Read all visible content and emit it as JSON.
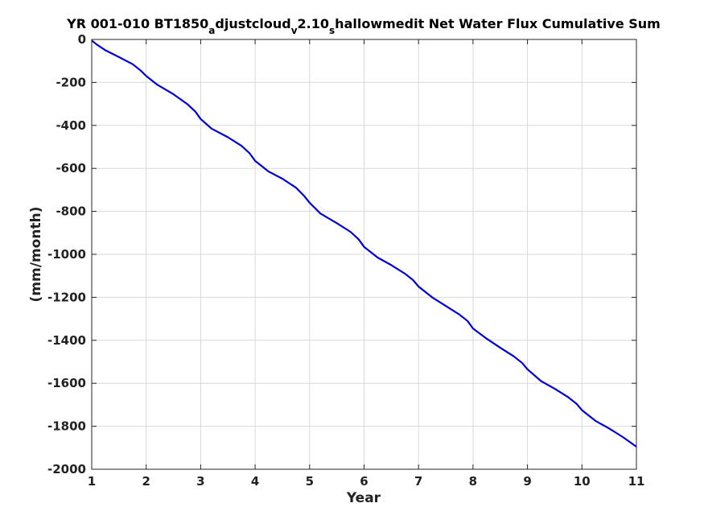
{
  "chart_data": {
    "type": "line",
    "title": {
      "prefix": "YR 001-010 BT1850",
      "sub1": "a",
      "mid1": "djustcloud",
      "sub2": "v",
      "mid2": "2.10",
      "sub3": "s",
      "suffix": "hallowmedit Net Water Flux Cumulative Sum"
    },
    "xlabel": "Year",
    "ylabel": "(mm/month)",
    "xlim": [
      1,
      11
    ],
    "ylim": [
      -2000,
      0
    ],
    "xticks": [
      1,
      2,
      3,
      4,
      5,
      6,
      7,
      8,
      9,
      10,
      11
    ],
    "yticks": [
      0,
      -200,
      -400,
      -600,
      -800,
      -1000,
      -1200,
      -1400,
      -1600,
      -1800,
      -2000
    ],
    "grid": true,
    "series": [
      {
        "color": "#0000cc",
        "x": [
          1.0,
          1.1,
          1.25,
          1.5,
          1.75,
          1.9,
          2.0,
          2.2,
          2.5,
          2.75,
          2.9,
          3.0,
          3.2,
          3.5,
          3.75,
          3.9,
          4.0,
          4.25,
          4.5,
          4.75,
          4.9,
          5.0,
          5.2,
          5.5,
          5.75,
          5.9,
          6.0,
          6.25,
          6.5,
          6.75,
          6.9,
          7.0,
          7.25,
          7.5,
          7.75,
          7.9,
          8.0,
          8.25,
          8.5,
          8.75,
          8.9,
          9.0,
          9.25,
          9.5,
          9.75,
          9.9,
          10.0,
          10.25,
          10.5,
          10.75,
          11.0
        ],
        "y": [
          -5,
          -25,
          -50,
          -82,
          -115,
          -145,
          -170,
          -210,
          -255,
          -300,
          -335,
          -370,
          -415,
          -455,
          -495,
          -530,
          -565,
          -615,
          -648,
          -690,
          -728,
          -760,
          -810,
          -855,
          -895,
          -930,
          -965,
          -1015,
          -1050,
          -1090,
          -1120,
          -1150,
          -1200,
          -1240,
          -1280,
          -1310,
          -1345,
          -1392,
          -1435,
          -1475,
          -1505,
          -1535,
          -1590,
          -1625,
          -1665,
          -1695,
          -1725,
          -1775,
          -1810,
          -1850,
          -1895
        ]
      }
    ]
  }
}
